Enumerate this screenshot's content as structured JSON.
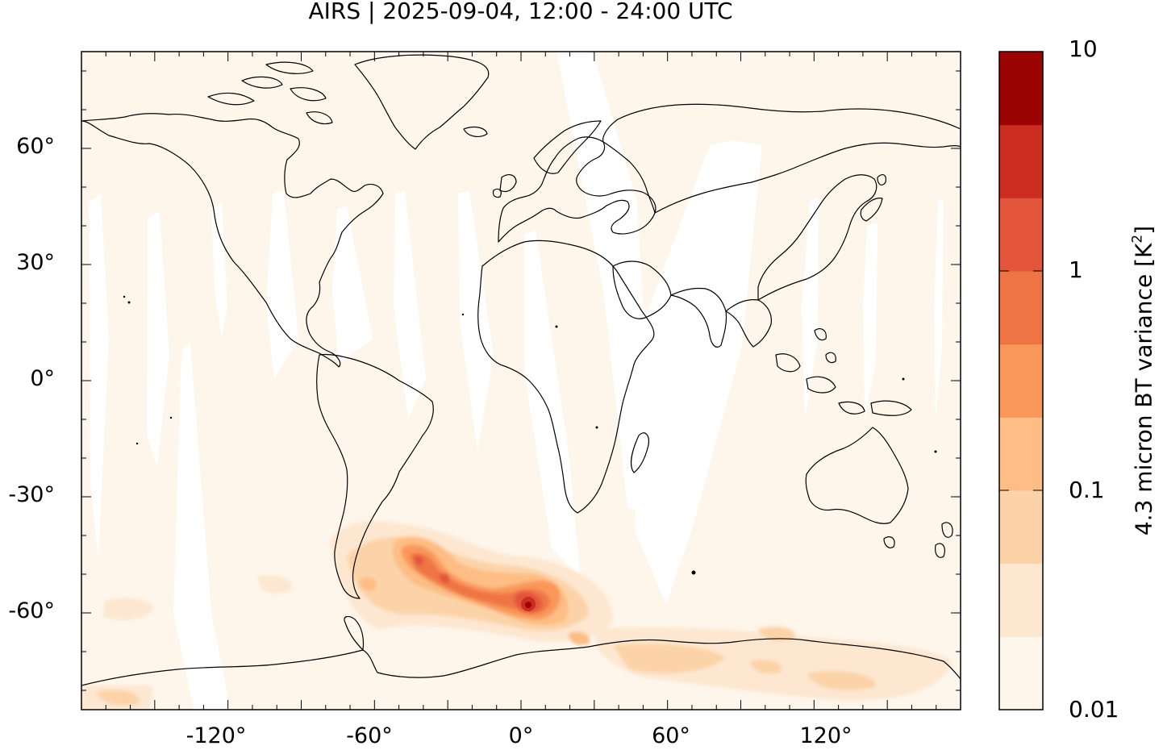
{
  "title": "AIRS | 2025-09-04, 12:00 - 24:00 UTC",
  "axes": {
    "y_tick_labels": [
      "60°",
      "30°",
      "0°",
      "-30°",
      "-60°"
    ],
    "x_tick_labels": [
      "-120°",
      "-60°",
      "0°",
      "60°",
      "120°"
    ]
  },
  "colorbar": {
    "title_text": "4.3 micron BT variance [K",
    "title_sup": "2",
    "title_close": "]",
    "tick_labels": [
      "10",
      "1",
      "0.1",
      "0.01"
    ],
    "scale": "log",
    "colors": [
      "#fef5eb",
      "#fde7d0",
      "#fcd3a8",
      "#fdbd84",
      "#f9975a",
      "#ef7445",
      "#e3553a",
      "#cc2d20",
      "#9c0303"
    ]
  },
  "map": {
    "projection": "plate carree",
    "lon_range": [
      -180,
      180
    ],
    "lat_range": [
      -85,
      85
    ],
    "background_color": "#fef5eb",
    "coastline_color": "#000000",
    "max_variance_region": "Southern Atlantic / Southern Ocean, near 0° longitude, -55° latitude"
  }
}
